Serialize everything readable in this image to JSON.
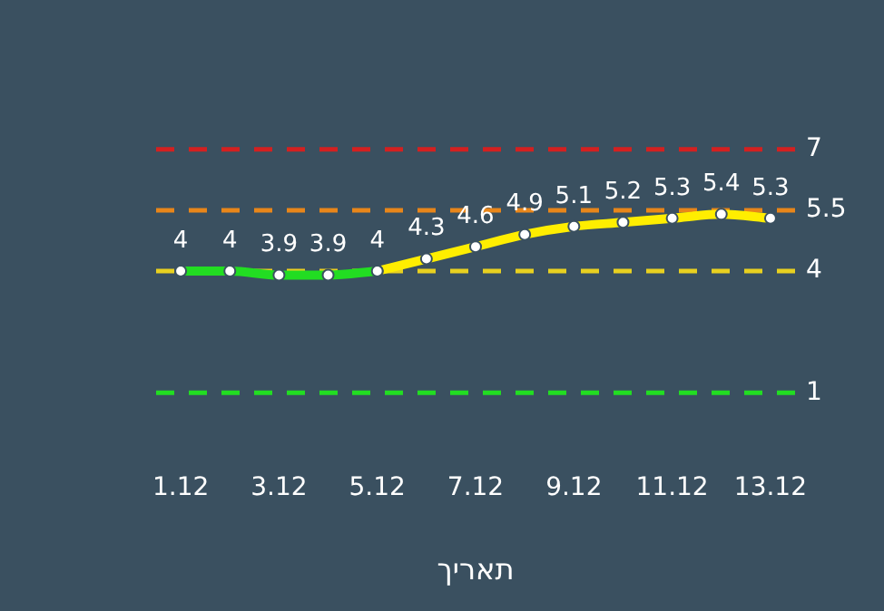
{
  "chart_data": {
    "type": "line",
    "xlabel": "תאריך",
    "categories": [
      "1.12",
      null,
      "3.12",
      null,
      "5.12",
      null,
      "7.12",
      null,
      "9.12",
      null,
      "11.12",
      null,
      "13.12"
    ],
    "series": [
      {
        "color": "#22dd22",
        "values": [
          4,
          4,
          3.9,
          3.9,
          4,
          null,
          null,
          null,
          null,
          null,
          null,
          null,
          null
        ],
        "value_labels": [
          "4",
          "4",
          "3.9",
          "3.9",
          "4",
          null,
          null,
          null,
          null,
          null,
          null,
          null,
          null
        ]
      },
      {
        "color": "#ffee00",
        "values": [
          null,
          null,
          null,
          null,
          4,
          4.3,
          4.6,
          4.9,
          5.1,
          5.2,
          5.3,
          5.4,
          5.3
        ],
        "value_labels": [
          null,
          null,
          null,
          null,
          null,
          "4.3",
          "4.6",
          "4.9",
          "5.1",
          "5.2",
          "5.3",
          "5.4",
          "5.3"
        ]
      }
    ],
    "marker": "circle",
    "line_style": "solid",
    "tick_labels": "x",
    "ref_lines": [
      {
        "axis": "y",
        "value": 7,
        "label": "7",
        "color": "#d42020",
        "line_style": "dashed"
      },
      {
        "axis": "y",
        "value": 5.5,
        "label": "5.5",
        "color": "#e8861a",
        "line_style": "dashed"
      },
      {
        "axis": "y",
        "value": 4,
        "label": "4",
        "color": "#e8d020",
        "line_style": "dashed"
      },
      {
        "axis": "y",
        "value": 1,
        "label": "1",
        "color": "#22dd22",
        "line_style": "dashed"
      }
    ]
  }
}
